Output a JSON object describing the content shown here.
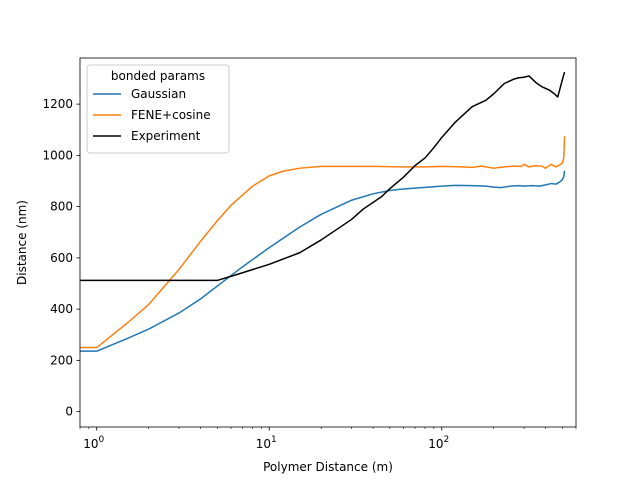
{
  "chart_data": {
    "type": "line",
    "title": "",
    "xlabel": "Polymer Distance (m)",
    "ylabel": "Distance (nm)",
    "xscale": "log",
    "xlim": [
      0.8,
      600
    ],
    "ylim": [
      -60,
      1380
    ],
    "xticks": [
      {
        "value": 1,
        "base": "10",
        "exp": "0"
      },
      {
        "value": 10,
        "base": "10",
        "exp": "1"
      },
      {
        "value": 100,
        "base": "10",
        "exp": "2"
      }
    ],
    "yticks": [
      0,
      200,
      400,
      600,
      800,
      1000,
      1200
    ],
    "grid": false,
    "legend": {
      "title": "bonded params",
      "position": "upper-left"
    },
    "series": [
      {
        "name": "Gaussian",
        "color": "#1f77b4",
        "points": [
          [
            0.7,
            236
          ],
          [
            1,
            236
          ],
          [
            1.5,
            285
          ],
          [
            2,
            322
          ],
          [
            3,
            385
          ],
          [
            4,
            440
          ],
          [
            5,
            490
          ],
          [
            7,
            565
          ],
          [
            10,
            640
          ],
          [
            15,
            720
          ],
          [
            20,
            770
          ],
          [
            30,
            825
          ],
          [
            40,
            850
          ],
          [
            50,
            863
          ],
          [
            60,
            869
          ],
          [
            80,
            875
          ],
          [
            100,
            880
          ],
          [
            120,
            883
          ],
          [
            150,
            882
          ],
          [
            180,
            880
          ],
          [
            200,
            876
          ],
          [
            220,
            874
          ],
          [
            250,
            880
          ],
          [
            280,
            882
          ],
          [
            300,
            880
          ],
          [
            330,
            882
          ],
          [
            370,
            880
          ],
          [
            400,
            885
          ],
          [
            430,
            890
          ],
          [
            460,
            888
          ],
          [
            480,
            895
          ],
          [
            500,
            905
          ],
          [
            510,
            918
          ],
          [
            515,
            940
          ]
        ]
      },
      {
        "name": "FENE+cosine",
        "color": "#ff7f0e",
        "points": [
          [
            0.7,
            250
          ],
          [
            1,
            250
          ],
          [
            1.5,
            345
          ],
          [
            2,
            418
          ],
          [
            3,
            555
          ],
          [
            4,
            665
          ],
          [
            5,
            745
          ],
          [
            6,
            805
          ],
          [
            8,
            880
          ],
          [
            10,
            920
          ],
          [
            12,
            938
          ],
          [
            15,
            950
          ],
          [
            20,
            957
          ],
          [
            30,
            957
          ],
          [
            40,
            957
          ],
          [
            60,
            955
          ],
          [
            80,
            955
          ],
          [
            100,
            957
          ],
          [
            130,
            955
          ],
          [
            150,
            953
          ],
          [
            170,
            958
          ],
          [
            200,
            950
          ],
          [
            230,
            955
          ],
          [
            260,
            958
          ],
          [
            290,
            957
          ],
          [
            300,
            965
          ],
          [
            320,
            955
          ],
          [
            350,
            960
          ],
          [
            380,
            958
          ],
          [
            400,
            950
          ],
          [
            430,
            965
          ],
          [
            460,
            955
          ],
          [
            480,
            962
          ],
          [
            500,
            970
          ],
          [
            510,
            990
          ],
          [
            515,
            1075
          ]
        ]
      },
      {
        "name": "Experiment",
        "color": "#000000",
        "points": [
          [
            0.7,
            512
          ],
          [
            1,
            512
          ],
          [
            2,
            512
          ],
          [
            3,
            512
          ],
          [
            5,
            512
          ],
          [
            6.5,
            535
          ],
          [
            10,
            575
          ],
          [
            15,
            620
          ],
          [
            20,
            670
          ],
          [
            30,
            750
          ],
          [
            35,
            790
          ],
          [
            45,
            840
          ],
          [
            50,
            870
          ],
          [
            60,
            915
          ],
          [
            70,
            960
          ],
          [
            80,
            990
          ],
          [
            90,
            1030
          ],
          [
            100,
            1070
          ],
          [
            120,
            1130
          ],
          [
            150,
            1190
          ],
          [
            180,
            1215
          ],
          [
            200,
            1240
          ],
          [
            230,
            1280
          ],
          [
            260,
            1297
          ],
          [
            280,
            1303
          ],
          [
            300,
            1305
          ],
          [
            320,
            1310
          ],
          [
            350,
            1285
          ],
          [
            380,
            1268
          ],
          [
            420,
            1255
          ],
          [
            450,
            1240
          ],
          [
            470,
            1228
          ],
          [
            480,
            1250
          ],
          [
            500,
            1295
          ],
          [
            515,
            1325
          ]
        ]
      }
    ]
  }
}
